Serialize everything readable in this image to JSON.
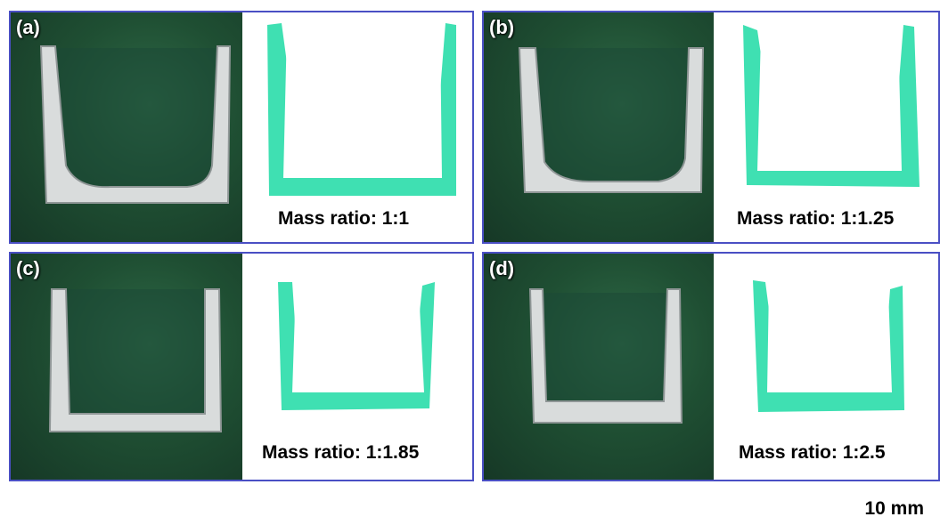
{
  "figure": {
    "panels": [
      {
        "label": "(a)",
        "ratio_text": "Mass ratio: 1:1"
      },
      {
        "label": "(b)",
        "ratio_text": "Mass ratio: 1:1.25"
      },
      {
        "label": "(c)",
        "ratio_text": "Mass ratio: 1:1.85"
      },
      {
        "label": "(d)",
        "ratio_text": "Mass ratio: 1:2.5"
      }
    ],
    "scale_bar": "10 mm"
  },
  "colors": {
    "panel_border": "#4a4fc4",
    "profile_fill": "#3fe0b2",
    "background_board": "#1f4f33",
    "metal_part": "#d9dcdc"
  }
}
